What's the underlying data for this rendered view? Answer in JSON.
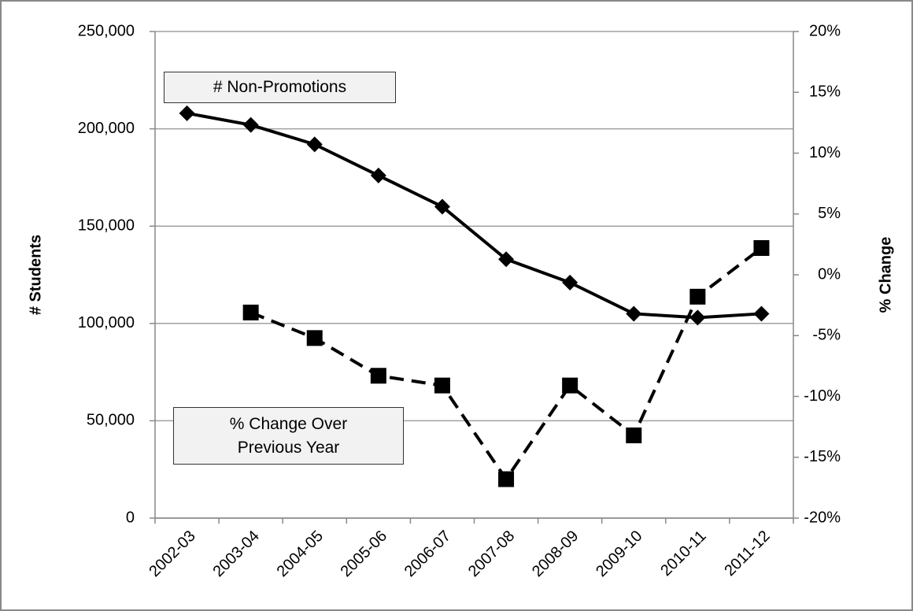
{
  "chart_data": {
    "type": "line",
    "categories": [
      "2002-03",
      "2003-04",
      "2004-05",
      "2005-06",
      "2006-07",
      "2007-08",
      "2008-09",
      "2009-10",
      "2010-11",
      "2011-12"
    ],
    "series": [
      {
        "name": "# Non-Promotions",
        "color": "#000000",
        "line_style": "solid",
        "marker": "diamond",
        "values": [
          208000,
          202000,
          192000,
          176000,
          160000,
          133000,
          121000,
          105000,
          103000,
          105000
        ]
      },
      {
        "name": "% Change Over Previous Year",
        "color": "#000000",
        "line_style": "dashed",
        "marker": "square",
        "axis": "y2",
        "values": [
          null,
          -3.1,
          -5.2,
          -8.3,
          -9.1,
          -16.8,
          -9.1,
          -13.2,
          -1.8,
          2.2
        ]
      }
    ],
    "y_label": "# Students",
    "y2_label": "% Change",
    "ylim": [
      0,
      250000
    ],
    "yticks": [
      0,
      {
        "value": 50000,
        "label": "50,000"
      },
      {
        "value": 100000,
        "label": "100,000"
      },
      {
        "value": 150000,
        "label": "150,000"
      },
      {
        "value": 200000,
        "label": "200,000"
      },
      {
        "value": 250000,
        "label": "250,000"
      }
    ],
    "y2lim": [
      -20,
      20
    ],
    "y2ticks": [
      {
        "value": -20,
        "label": "-20%"
      },
      {
        "value": -15,
        "label": "-15%"
      },
      {
        "value": -10,
        "label": "-10%"
      },
      {
        "value": -5,
        "label": "-5%"
      },
      {
        "value": 0,
        "label": "0%"
      },
      {
        "value": 5,
        "label": "5%"
      },
      {
        "value": 10,
        "label": "10%"
      },
      {
        "value": 15,
        "label": "15%"
      },
      {
        "value": 20,
        "label": "20%"
      }
    ],
    "grid": true
  }
}
